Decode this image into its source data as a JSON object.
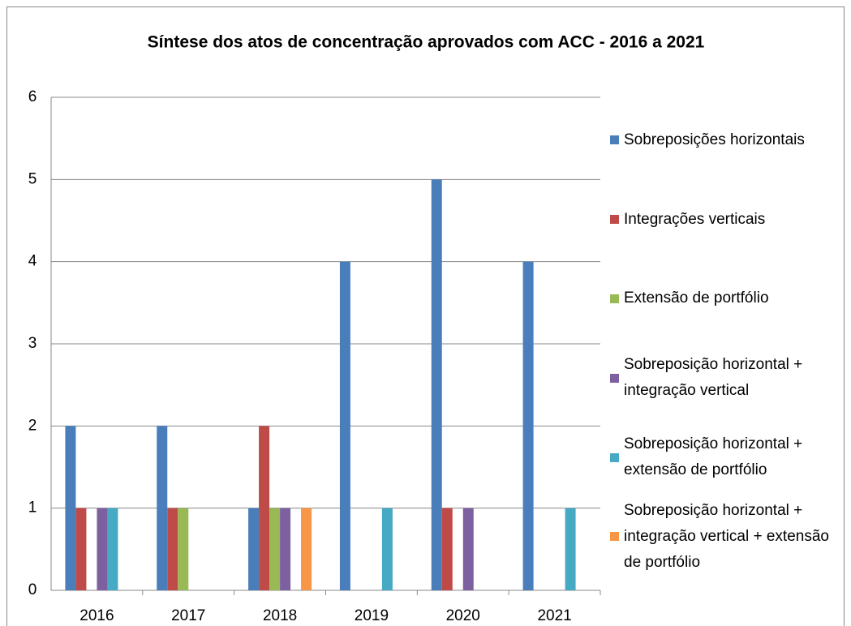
{
  "chart_data": {
    "type": "bar",
    "title": "Síntese dos atos de concentração aprovados com ACC - 2016 a 2021",
    "categories": [
      "2016",
      "2017",
      "2018",
      "2019",
      "2020",
      "2021"
    ],
    "series": [
      {
        "name": "Sobreposições horizontais",
        "color": "#4a7ebb",
        "values": [
          2,
          2,
          1,
          4,
          5,
          4
        ]
      },
      {
        "name": "Integrações verticais",
        "color": "#be4b48",
        "values": [
          1,
          1,
          2,
          0,
          1,
          0
        ]
      },
      {
        "name": "Extensão de portfólio",
        "color": "#98b954",
        "values": [
          0,
          1,
          1,
          0,
          0,
          0
        ]
      },
      {
        "name": "Sobreposição horizontal + integração vertical",
        "color": "#7d60a0",
        "values": [
          1,
          0,
          1,
          0,
          1,
          0
        ]
      },
      {
        "name": "Sobreposição horizontal + extensão de portfólio",
        "color": "#46aac5",
        "values": [
          1,
          0,
          0,
          1,
          0,
          1
        ]
      },
      {
        "name": "Sobreposição horizontal + integração vertical + extensão de portfólio",
        "color": "#f79646",
        "values": [
          0,
          0,
          1,
          0,
          0,
          0
        ]
      }
    ],
    "ylim": [
      0,
      6
    ],
    "yticks": [
      0,
      1,
      2,
      3,
      4,
      5,
      6
    ],
    "grid": true,
    "legend": "right"
  }
}
